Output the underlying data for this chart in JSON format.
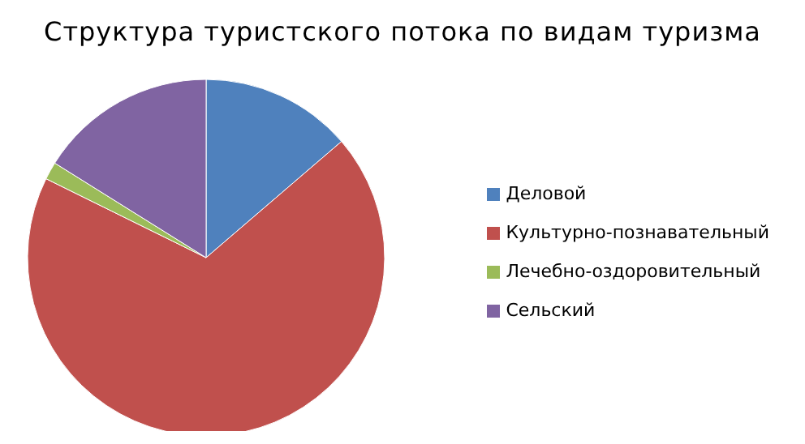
{
  "chart_data": {
    "type": "pie",
    "title": "Структура туристского потока по видам туризма",
    "categories": [
      "Деловой",
      "Культурно-познавательный",
      "Лечебно-оздоровительный",
      "Сельский"
    ],
    "values": [
      13.7,
      68.6,
      1.6,
      16.1
    ],
    "colors": [
      "#4f81bd",
      "#c0504d",
      "#9bbb59",
      "#8064a2"
    ],
    "legend": "right"
  }
}
